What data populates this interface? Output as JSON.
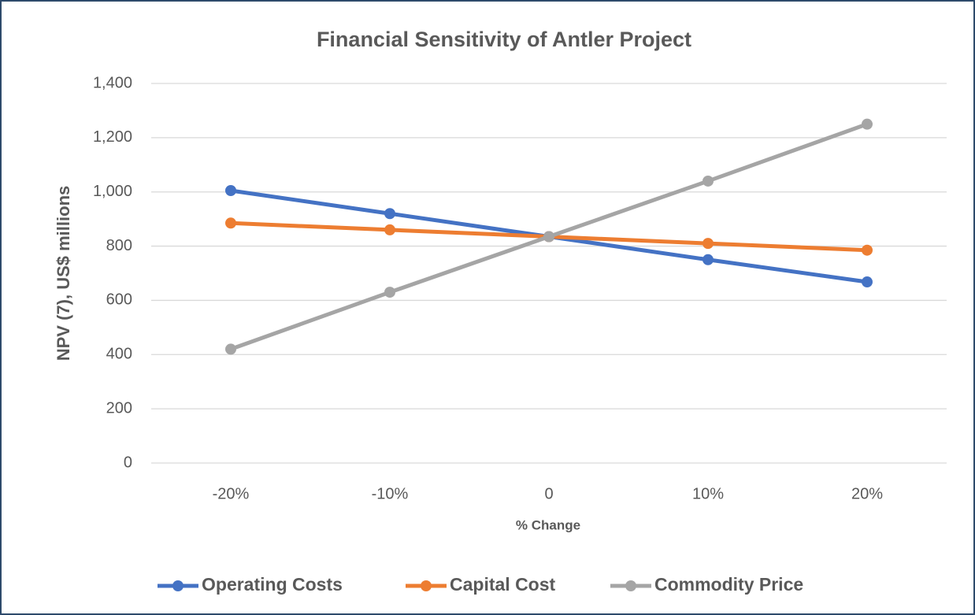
{
  "chart_data": {
    "type": "line",
    "title": "Financial Sensitivity of Antler Project",
    "x_label": "% Change",
    "y_label": "NPV (7), US$ millions",
    "categories": [
      "-20%",
      "-10%",
      "0",
      "10%",
      "20%"
    ],
    "series": [
      {
        "name": "Operating Costs",
        "color": "#4472c4",
        "values": [
          1005,
          920,
          835,
          750,
          668
        ]
      },
      {
        "name": "Capital Cost",
        "color": "#ed7d31",
        "values": [
          885,
          860,
          835,
          810,
          785
        ]
      },
      {
        "name": "Commodity Price",
        "color": "#a5a5a5",
        "values": [
          420,
          630,
          835,
          1040,
          1250
        ]
      }
    ],
    "ylim": [
      0,
      1400
    ],
    "yticks": [
      0,
      200,
      400,
      600,
      800,
      {
        "value": 1000,
        "label": "1,000"
      },
      {
        "value": 1200,
        "label": "1,200"
      },
      {
        "value": 1400,
        "label": "1,400"
      }
    ],
    "grid": true,
    "legend": "bottom"
  }
}
